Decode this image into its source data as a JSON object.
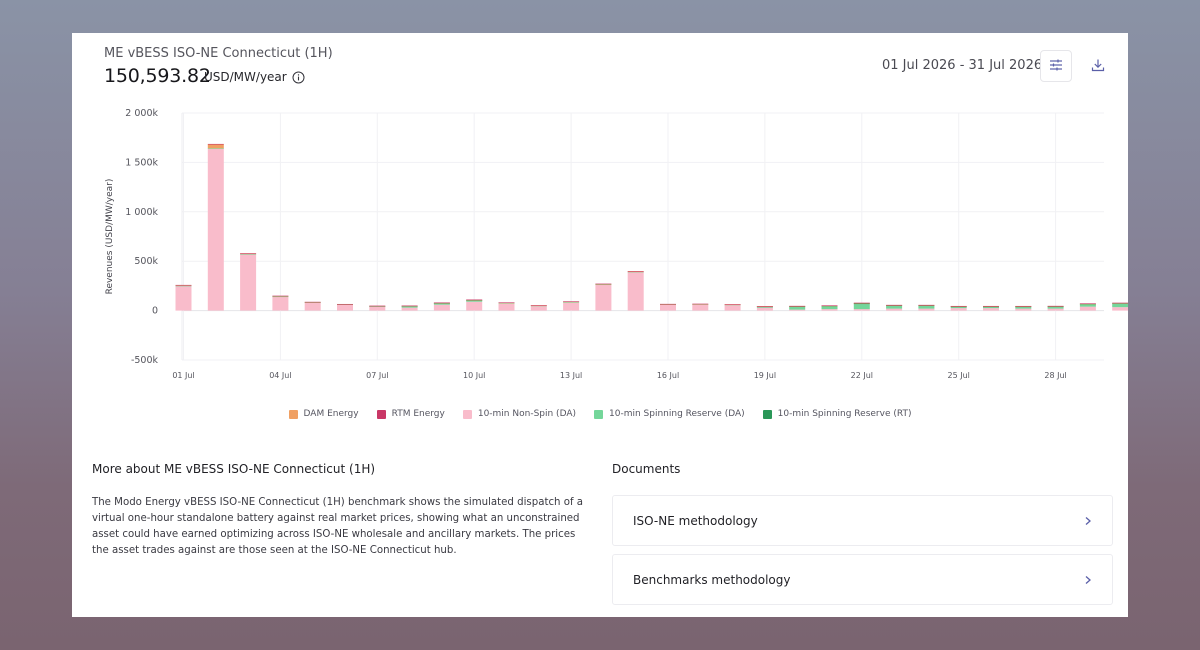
{
  "header": {
    "title": "ME vBESS ISO-NE Connecticut (1H)",
    "value": "150,593.82",
    "unit": "USD/MW/year",
    "date_range": "01 Jul 2026 - 31 Jul 2026",
    "icons": {
      "info": "info-icon",
      "filter": "sliders-icon",
      "download": "download-icon"
    }
  },
  "colors": {
    "dam": "#f0a063",
    "rtm": "#c93766",
    "nonspin": "#f9bccb",
    "spin_da": "#74d69a",
    "spin_rt": "#2a9758"
  },
  "chart_data": {
    "type": "bar",
    "stacked": true,
    "ylabel": "Revenues (USD/MW/year)",
    "ylim": [
      -500000,
      2000000
    ],
    "y_ticks": [
      2000000,
      1500000,
      1000000,
      500000,
      0,
      -500000
    ],
    "y_tick_labels": [
      "2 000k",
      "1 500k",
      "1 000k",
      "500k",
      "0",
      "-500k"
    ],
    "x_tick_labels": [
      "01 Jul",
      "04 Jul",
      "07 Jul",
      "10 Jul",
      "13 Jul",
      "16 Jul",
      "19 Jul",
      "22 Jul",
      "25 Jul",
      "28 Jul"
    ],
    "x_tick_days": [
      1,
      4,
      7,
      10,
      13,
      16,
      19,
      22,
      25,
      28
    ],
    "categories": [
      1,
      2,
      3,
      4,
      5,
      6,
      7,
      8,
      9,
      10,
      11,
      12,
      13,
      14,
      15,
      16,
      17,
      18,
      19,
      20,
      21,
      22,
      23,
      24,
      25,
      26,
      27,
      28,
      29,
      30
    ],
    "legend_position": "bottom",
    "series": [
      {
        "name": "DAM Energy",
        "color_key": "dam",
        "values": [
          5000,
          40000,
          5000,
          5000,
          3000,
          2000,
          2000,
          2000,
          3000,
          3000,
          2000,
          2000,
          3000,
          4000,
          3000,
          2000,
          2000,
          2000,
          2000,
          2000,
          2000,
          2000,
          2000,
          2000,
          2000,
          2000,
          2000,
          2000,
          2000,
          2000
        ]
      },
      {
        "name": "RTM Energy",
        "color_key": "rtm",
        "values": [
          3000,
          5000,
          3000,
          3000,
          3000,
          2000,
          2000,
          2000,
          3000,
          3000,
          3000,
          3000,
          3000,
          4000,
          4000,
          3000,
          3000,
          3000,
          3000,
          3000,
          3000,
          3000,
          3000,
          3000,
          3000,
          3000,
          3000,
          3000,
          3000,
          3000
        ]
      },
      {
        "name": "10-min Non-Spin (DA)",
        "color_key": "nonspin",
        "values": [
          250000,
          1640000,
          570000,
          140000,
          80000,
          60000,
          40000,
          30000,
          60000,
          90000,
          70000,
          45000,
          80000,
          260000,
          390000,
          60000,
          60000,
          55000,
          30000,
          10000,
          15000,
          15000,
          20000,
          20000,
          25000,
          25000,
          20000,
          20000,
          40000,
          35000
        ]
      },
      {
        "name": "10-min Spinning Reserve (DA)",
        "color_key": "spin_da",
        "values": [
          2000,
          2000,
          3000,
          3000,
          3000,
          3000,
          5000,
          15000,
          15000,
          15000,
          8000,
          5000,
          8000,
          5000,
          3000,
          3000,
          5000,
          5000,
          10000,
          30000,
          30000,
          50000,
          30000,
          30000,
          15000,
          15000,
          20000,
          20000,
          25000,
          35000
        ]
      },
      {
        "name": "10-min Spinning Reserve (RT)",
        "color_key": "spin_rt",
        "values": [
          0,
          0,
          0,
          0,
          0,
          0,
          1000,
          2000,
          1000,
          1000,
          0,
          0,
          0,
          0,
          0,
          0,
          0,
          0,
          1000,
          3000,
          3000,
          10000,
          3000,
          3000,
          2000,
          2000,
          2000,
          3000,
          3000,
          5000
        ]
      }
    ]
  },
  "more_about": {
    "title": "More about ME vBESS ISO-NE Connecticut (1H)",
    "body": "The Modo Energy vBESS ISO-NE Connecticut (1H) benchmark shows the simulated dispatch of a virtual one-hour standalone battery against real market prices, showing what an unconstrained asset could have earned optimizing across ISO-NE wholesale and ancillary markets. The prices the asset trades against are those seen at the ISO-NE Connecticut hub."
  },
  "documents": {
    "title": "Documents",
    "items": [
      {
        "label": "ISO-NE methodology",
        "icon": "chevron-right-icon"
      },
      {
        "label": "Benchmarks methodology",
        "icon": "chevron-right-icon"
      }
    ]
  }
}
